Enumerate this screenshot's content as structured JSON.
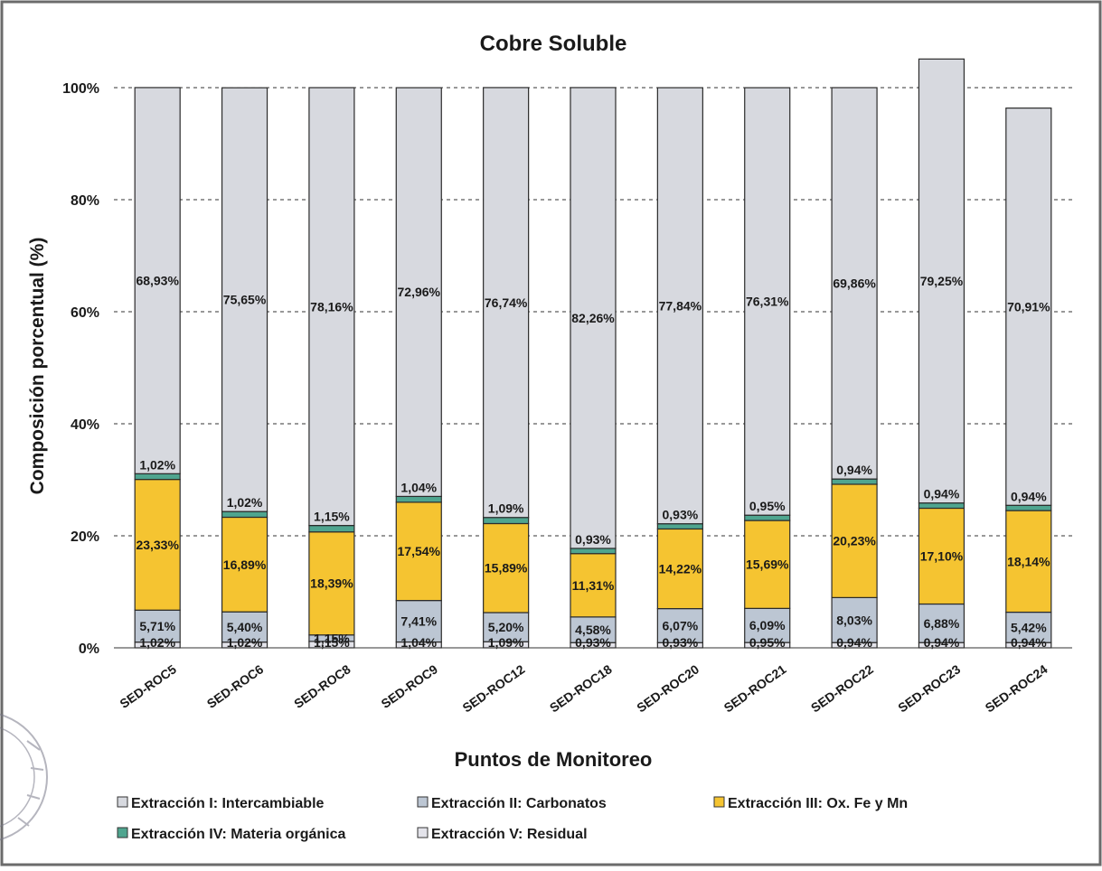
{
  "chart_data": {
    "type": "bar",
    "stacked": "percent",
    "title": "Cobre Soluble",
    "xlabel": "Puntos de Monitoreo",
    "ylabel": "Composición porcentual (%)",
    "ylim": [
      0,
      100
    ],
    "yticks": [
      "0%",
      "20%",
      "40%",
      "60%",
      "80%",
      "100%"
    ],
    "grid": true,
    "legend_position": "bottom",
    "categories": [
      "SED-ROC5",
      "SED-ROC6",
      "SED-ROC8",
      "SED-ROC9",
      "SED-ROC12",
      "SED-ROC18",
      "SED-ROC20",
      "SED-ROC21",
      "SED-ROC22",
      "SED-ROC23",
      "SED-ROC24"
    ],
    "series": [
      {
        "name": "Extracción V: Residual",
        "color": "#e3e3ea",
        "values": [
          1.02,
          1.02,
          1.15,
          1.04,
          1.09,
          0.93,
          0.93,
          0.95,
          0.94,
          0.94,
          0.94
        ],
        "labels": [
          "1,02%",
          "1,02%",
          "1,15%",
          "1,04%",
          "1,09%",
          "0,93%",
          "0,93%",
          "0,95%",
          "0,94%",
          "0,94%",
          "0,94%"
        ]
      },
      {
        "name": "Extracción II: Carbonatos",
        "color": "#bcc6d3",
        "values": [
          5.71,
          5.4,
          1.15,
          7.41,
          5.2,
          4.58,
          6.07,
          6.09,
          8.03,
          6.88,
          5.42
        ],
        "labels": [
          "5,71%",
          "5,40%",
          "1,15%",
          "7,41%",
          "5,20%",
          "4,58%",
          "6,07%",
          "6,09%",
          "8,03%",
          "6,88%",
          "5,42%"
        ]
      },
      {
        "name": "Extracción III: Ox. Fe y Mn",
        "color": "#f5c431",
        "values": [
          23.33,
          16.89,
          18.39,
          17.54,
          15.89,
          11.31,
          14.22,
          15.69,
          20.23,
          17.1,
          18.14
        ],
        "labels": [
          "23,33%",
          "16,89%",
          "18,39%",
          "17,54%",
          "15,89%",
          "11,31%",
          "14,22%",
          "15,69%",
          "20,23%",
          "17,10%",
          "18,14%"
        ]
      },
      {
        "name": "Extracción IV: Materia orgánica",
        "color": "#4fa58f",
        "values": [
          1.02,
          1.02,
          1.15,
          1.04,
          1.09,
          0.93,
          0.93,
          0.95,
          0.94,
          0.94,
          0.94
        ],
        "labels": [
          "1,02%",
          "1,02%",
          "1,15%",
          "1,04%",
          "1,09%",
          "0,93%",
          "0,93%",
          "0,95%",
          "0,94%",
          "0,94%",
          "0,94%"
        ]
      },
      {
        "name": "Extracción I: Intercambiable",
        "color": "#d7d9df",
        "values": [
          68.93,
          75.65,
          78.16,
          72.96,
          76.74,
          82.26,
          77.84,
          76.31,
          69.86,
          79.25,
          70.91
        ],
        "labels": [
          "68,93%",
          "75,65%",
          "78,16%",
          "72,96%",
          "76,74%",
          "82,26%",
          "77,84%",
          "76,31%",
          "69,86%",
          "79,25%",
          "70,91%"
        ]
      }
    ],
    "legend": [
      {
        "name": "Extracción I: Intercambiable",
        "color": "#d7d9df"
      },
      {
        "name": "Extracción II: Carbonatos",
        "color": "#bcc6d3"
      },
      {
        "name": "Extracción III: Ox. Fe y Mn",
        "color": "#f5c431"
      },
      {
        "name": "Extracción IV: Materia orgánica",
        "color": "#4fa58f"
      },
      {
        "name": "Extracción V: Residual",
        "color": "#e3e3ea"
      }
    ]
  }
}
